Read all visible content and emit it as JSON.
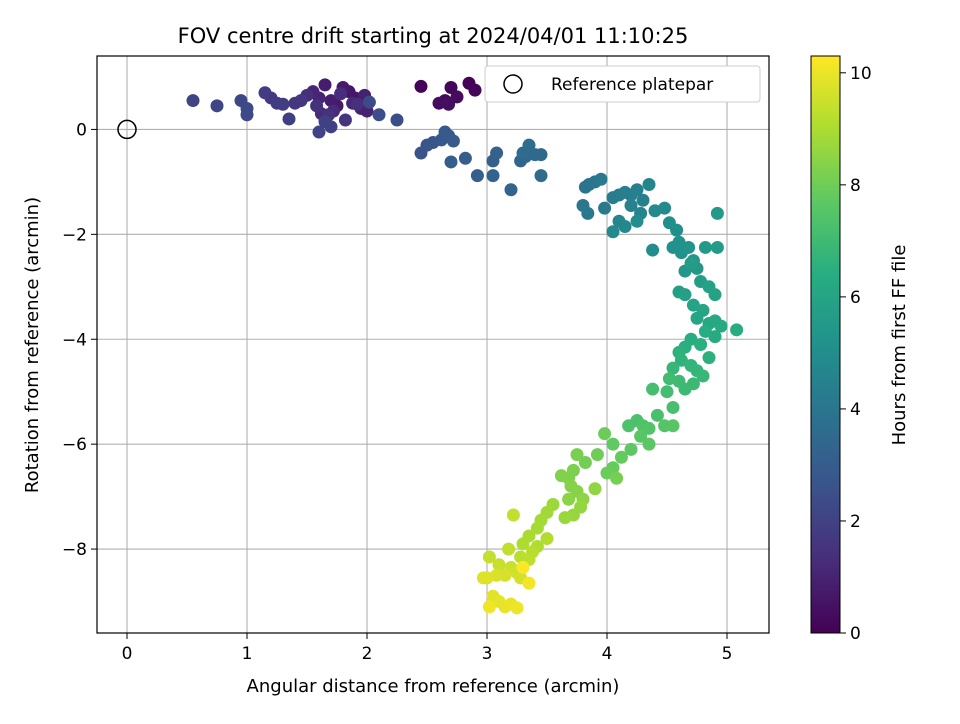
{
  "chart_data": {
    "type": "scatter",
    "title": "FOV centre drift starting at 2024/04/01 11:10:25",
    "xlabel": "Angular distance from reference (arcmin)",
    "ylabel": "Rotation from reference (arcmin)",
    "xlim": [
      -0.25,
      5.35
    ],
    "ylim": [
      -9.6,
      1.4
    ],
    "xticks": [
      "0",
      "1",
      "2",
      "3",
      "4",
      "5"
    ],
    "yticks": [
      "0",
      "−2",
      "−4",
      "−6",
      "−8"
    ],
    "grid": true,
    "legend": {
      "position": "top-right",
      "entries": [
        "Reference platepar"
      ]
    },
    "reference_point": {
      "x": 0.0,
      "y": 0.0
    },
    "colorbar": {
      "label": "Hours from first FF file",
      "range": [
        0,
        10.3
      ],
      "ticks": [
        "0",
        "2",
        "4",
        "6",
        "8",
        "10"
      ],
      "colormap": "viridis"
    },
    "points": [
      [
        2.45,
        0.82,
        0.05
      ],
      [
        2.85,
        0.88,
        0.1
      ],
      [
        2.9,
        0.75,
        0.15
      ],
      [
        2.7,
        0.8,
        0.2
      ],
      [
        2.65,
        0.55,
        0.25
      ],
      [
        2.75,
        0.62,
        0.3
      ],
      [
        2.6,
        0.5,
        0.35
      ],
      [
        2.68,
        0.48,
        0.4
      ],
      [
        1.85,
        0.72,
        0.6
      ],
      [
        1.9,
        0.6,
        0.65
      ],
      [
        1.75,
        0.45,
        0.7
      ],
      [
        1.8,
        0.8,
        0.75
      ],
      [
        1.65,
        0.85,
        0.8
      ],
      [
        1.7,
        0.55,
        0.85
      ],
      [
        1.95,
        0.4,
        0.9
      ],
      [
        1.98,
        0.65,
        0.95
      ],
      [
        2.0,
        0.35,
        1.0
      ],
      [
        1.6,
        0.6,
        1.05
      ],
      [
        1.55,
        0.72,
        1.1
      ],
      [
        1.88,
        0.5,
        1.15
      ],
      [
        1.72,
        0.35,
        1.2
      ],
      [
        1.62,
        0.3,
        1.25
      ],
      [
        1.78,
        0.68,
        1.3
      ],
      [
        1.92,
        0.48,
        1.35
      ],
      [
        1.5,
        0.65,
        1.4
      ],
      [
        1.58,
        0.45,
        1.45
      ],
      [
        1.68,
        0.28,
        1.5
      ],
      [
        1.82,
        0.18,
        1.55
      ],
      [
        1.45,
        0.55,
        1.6
      ],
      [
        1.4,
        0.5,
        1.65
      ],
      [
        1.2,
        0.6,
        1.7
      ],
      [
        1.25,
        0.5,
        1.75
      ],
      [
        1.3,
        0.48,
        1.8
      ],
      [
        1.15,
        0.7,
        1.85
      ],
      [
        1.35,
        0.2,
        1.9
      ],
      [
        1.65,
        0.15,
        1.95
      ],
      [
        1.7,
        0.05,
        2.0
      ],
      [
        1.6,
        -0.05,
        2.05
      ],
      [
        0.55,
        0.55,
        2.1
      ],
      [
        0.75,
        0.45,
        2.15
      ],
      [
        0.95,
        0.55,
        2.2
      ],
      [
        1.0,
        0.4,
        2.25
      ],
      [
        1.0,
        0.28,
        2.3
      ],
      [
        2.02,
        0.52,
        2.35
      ],
      [
        2.1,
        0.28,
        2.4
      ],
      [
        2.25,
        0.18,
        2.45
      ],
      [
        2.45,
        -0.45,
        2.6
      ],
      [
        2.5,
        -0.3,
        2.7
      ],
      [
        2.55,
        -0.25,
        2.75
      ],
      [
        2.62,
        -0.2,
        2.8
      ],
      [
        2.65,
        -0.05,
        2.85
      ],
      [
        2.68,
        -0.12,
        2.9
      ],
      [
        2.72,
        -0.22,
        2.95
      ],
      [
        2.82,
        -0.55,
        3.0
      ],
      [
        2.7,
        -0.62,
        3.05
      ],
      [
        2.92,
        -0.88,
        3.1
      ],
      [
        3.05,
        -0.6,
        3.15
      ],
      [
        3.08,
        -0.45,
        3.2
      ],
      [
        3.05,
        -0.88,
        3.25
      ],
      [
        3.2,
        -1.15,
        3.3
      ],
      [
        3.28,
        -0.6,
        3.35
      ],
      [
        3.32,
        -0.52,
        3.4
      ],
      [
        3.4,
        -0.48,
        3.45
      ],
      [
        3.45,
        -0.48,
        3.5
      ],
      [
        3.3,
        -0.45,
        3.55
      ],
      [
        3.45,
        -0.88,
        3.6
      ],
      [
        3.35,
        -0.3,
        3.65
      ],
      [
        3.82,
        -1.1,
        3.9
      ],
      [
        3.85,
        -1.05,
        3.95
      ],
      [
        3.9,
        -1.0,
        4.0
      ],
      [
        3.8,
        -1.45,
        4.05
      ],
      [
        3.84,
        -1.6,
        4.1
      ],
      [
        3.95,
        -0.95,
        4.15
      ],
      [
        3.98,
        -1.5,
        4.2
      ],
      [
        4.05,
        -1.3,
        4.25
      ],
      [
        4.1,
        -1.25,
        4.3
      ],
      [
        4.15,
        -1.2,
        4.35
      ],
      [
        4.2,
        -1.25,
        4.4
      ],
      [
        4.25,
        -1.15,
        4.45
      ],
      [
        4.3,
        -1.35,
        4.5
      ],
      [
        4.2,
        -1.45,
        4.55
      ],
      [
        4.28,
        -1.6,
        4.6
      ],
      [
        4.35,
        -1.05,
        4.65
      ],
      [
        4.1,
        -1.75,
        4.7
      ],
      [
        4.15,
        -1.85,
        4.75
      ],
      [
        4.05,
        -1.95,
        4.8
      ],
      [
        4.4,
        -1.55,
        4.85
      ],
      [
        4.48,
        -1.5,
        4.9
      ],
      [
        4.25,
        -1.75,
        4.95
      ],
      [
        4.38,
        -2.3,
        5.0
      ],
      [
        4.52,
        -1.78,
        5.05
      ],
      [
        4.58,
        -1.92,
        5.1
      ],
      [
        4.55,
        -2.25,
        5.15
      ],
      [
        4.6,
        -2.15,
        5.2
      ],
      [
        4.62,
        -2.35,
        5.25
      ],
      [
        4.68,
        -2.25,
        5.3
      ],
      [
        4.72,
        -2.5,
        5.35
      ],
      [
        4.65,
        -2.7,
        5.4
      ],
      [
        4.75,
        -2.65,
        5.45
      ],
      [
        4.82,
        -2.25,
        5.5
      ],
      [
        4.92,
        -1.6,
        5.55
      ],
      [
        4.92,
        -2.25,
        5.6
      ],
      [
        4.7,
        -2.55,
        5.65
      ],
      [
        4.78,
        -2.9,
        5.7
      ],
      [
        4.6,
        -3.1,
        5.75
      ],
      [
        4.65,
        -3.15,
        5.8
      ],
      [
        4.85,
        -3.0,
        5.85
      ],
      [
        4.9,
        -3.15,
        5.9
      ],
      [
        4.72,
        -3.35,
        5.95
      ],
      [
        4.8,
        -3.45,
        6.0
      ],
      [
        4.75,
        -3.6,
        6.05
      ],
      [
        4.85,
        -3.7,
        6.1
      ],
      [
        4.9,
        -3.65,
        6.15
      ],
      [
        4.95,
        -3.75,
        6.2
      ],
      [
        4.9,
        -3.95,
        6.25
      ],
      [
        5.08,
        -3.82,
        6.3
      ],
      [
        4.82,
        -3.85,
        6.35
      ],
      [
        4.7,
        -4.0,
        6.4
      ],
      [
        4.65,
        -4.15,
        6.45
      ],
      [
        4.78,
        -4.1,
        6.5
      ],
      [
        4.85,
        -4.35,
        6.55
      ],
      [
        4.6,
        -4.25,
        6.6
      ],
      [
        4.62,
        -4.4,
        6.65
      ],
      [
        4.7,
        -4.5,
        6.7
      ],
      [
        4.75,
        -4.6,
        6.75
      ],
      [
        4.55,
        -4.55,
        6.8
      ],
      [
        4.8,
        -4.7,
        6.85
      ],
      [
        4.72,
        -4.85,
        6.9
      ],
      [
        4.65,
        -4.95,
        6.95
      ],
      [
        4.6,
        -4.8,
        7.0
      ],
      [
        4.52,
        -4.75,
        7.05
      ],
      [
        4.5,
        -5.0,
        7.1
      ],
      [
        4.38,
        -4.95,
        7.15
      ],
      [
        4.55,
        -5.3,
        7.2
      ],
      [
        4.42,
        -5.45,
        7.25
      ],
      [
        4.25,
        -5.55,
        7.3
      ],
      [
        4.18,
        -5.65,
        7.35
      ],
      [
        4.3,
        -5.65,
        7.4
      ],
      [
        4.35,
        -5.7,
        7.45
      ],
      [
        4.48,
        -5.65,
        7.5
      ],
      [
        4.55,
        -5.65,
        7.55
      ],
      [
        4.28,
        -5.85,
        7.6
      ],
      [
        4.35,
        -6.0,
        7.65
      ],
      [
        4.2,
        -6.1,
        7.7
      ],
      [
        4.05,
        -6.0,
        7.75
      ],
      [
        4.12,
        -6.25,
        7.8
      ],
      [
        4.05,
        -6.45,
        7.85
      ],
      [
        4.0,
        -6.55,
        7.9
      ],
      [
        3.98,
        -5.8,
        7.95
      ],
      [
        3.92,
        -6.2,
        8.0
      ],
      [
        3.82,
        -6.35,
        8.05
      ],
      [
        4.08,
        -6.65,
        8.1
      ],
      [
        3.75,
        -6.2,
        8.15
      ],
      [
        3.72,
        -6.5,
        8.2
      ],
      [
        3.68,
        -6.65,
        8.25
      ],
      [
        3.62,
        -6.6,
        8.3
      ],
      [
        3.7,
        -6.8,
        8.35
      ],
      [
        3.75,
        -6.9,
        8.4
      ],
      [
        3.68,
        -7.05,
        8.45
      ],
      [
        3.8,
        -7.05,
        8.5
      ],
      [
        3.9,
        -6.85,
        8.55
      ],
      [
        3.78,
        -7.2,
        8.6
      ],
      [
        3.72,
        -7.35,
        8.65
      ],
      [
        3.65,
        -7.4,
        8.7
      ],
      [
        3.55,
        -7.15,
        8.75
      ],
      [
        3.5,
        -7.3,
        8.8
      ],
      [
        3.45,
        -7.45,
        8.85
      ],
      [
        3.42,
        -7.6,
        8.9
      ],
      [
        3.35,
        -7.75,
        8.95
      ],
      [
        3.3,
        -7.9,
        9.0
      ],
      [
        3.42,
        -7.95,
        9.05
      ],
      [
        3.5,
        -7.8,
        9.1
      ],
      [
        3.38,
        -8.05,
        9.15
      ],
      [
        3.28,
        -8.15,
        9.2
      ],
      [
        3.35,
        -8.2,
        9.25
      ],
      [
        3.18,
        -8.0,
        9.3
      ],
      [
        3.22,
        -7.35,
        9.35
      ],
      [
        3.02,
        -8.15,
        9.4
      ],
      [
        3.1,
        -8.3,
        9.45
      ],
      [
        3.2,
        -8.35,
        9.5
      ],
      [
        3.25,
        -8.45,
        9.55
      ],
      [
        3.28,
        -8.55,
        9.6
      ],
      [
        3.15,
        -8.5,
        9.65
      ],
      [
        3.08,
        -8.5,
        9.7
      ],
      [
        3.0,
        -8.55,
        9.75
      ],
      [
        2.97,
        -8.55,
        9.8
      ],
      [
        3.05,
        -8.9,
        9.85
      ],
      [
        3.1,
        -9.0,
        9.9
      ],
      [
        3.15,
        -9.1,
        9.95
      ],
      [
        3.2,
        -9.05,
        10.0
      ],
      [
        3.25,
        -9.12,
        10.05
      ],
      [
        3.02,
        -9.1,
        10.1
      ],
      [
        3.35,
        -8.65,
        10.15
      ],
      [
        3.3,
        -8.35,
        10.25
      ]
    ]
  }
}
